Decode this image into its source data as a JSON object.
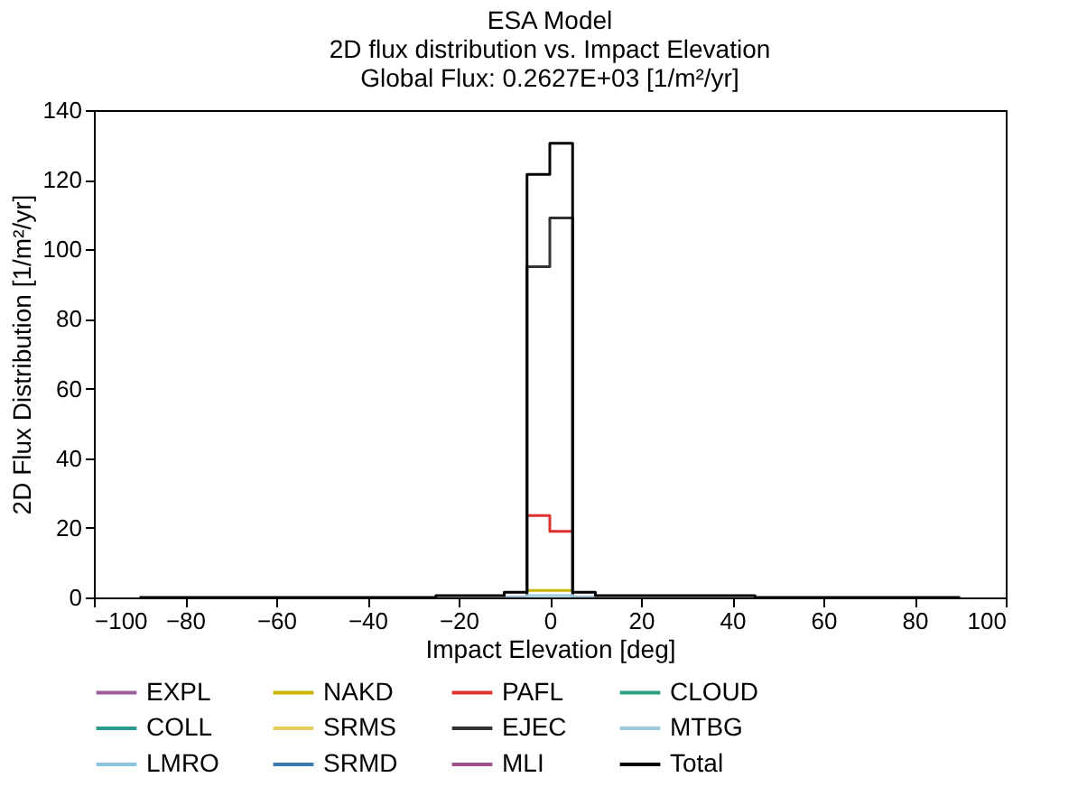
{
  "chart_data": {
    "type": "step",
    "title": "ESA Model",
    "subtitle": "2D flux distribution vs. Impact Elevation\nGlobal Flux: 0.2627E+03 [1/m²/yr]",
    "xlabel": "Impact Elevation [deg]",
    "ylabel": "2D Flux Distribution [1/m²/yr]",
    "xlim": [
      -100,
      100
    ],
    "xticks": [
      -100,
      -80,
      -60,
      -40,
      -20,
      0,
      20,
      40,
      60,
      80,
      100
    ],
    "ylim": [
      0,
      140
    ],
    "yticks": [
      0,
      20,
      40,
      60,
      80,
      100,
      120,
      140
    ],
    "grid": false,
    "legend": "bottom",
    "line_style": "solid",
    "series": [
      {
        "name": "EXPL",
        "color": "#9b5fa0"
      },
      {
        "name": "NAKD",
        "color": "#c8b400",
        "x": [
          -5,
          0,
          5
        ],
        "values": [
          2,
          2,
          2
        ]
      },
      {
        "name": "PAFL",
        "color": "#e03030",
        "x": [
          -5,
          0,
          5
        ],
        "values": [
          23.5,
          19,
          19
        ]
      },
      {
        "name": "CLOUD",
        "color": "#2aa080"
      },
      {
        "name": "COLL",
        "color": "#2a9a8a"
      },
      {
        "name": "SRMS",
        "color": "#e8d060"
      },
      {
        "name": "EJEC",
        "color": "#333333",
        "x": [
          -10,
          -5,
          0,
          5,
          10
        ],
        "values": [
          0,
          95,
          109,
          0,
          0
        ]
      },
      {
        "name": "MTBG",
        "color": "#a0c8e0",
        "x": [
          -10,
          -5,
          0,
          5,
          10
        ],
        "values": [
          0,
          0.5,
          0.5,
          0,
          0
        ]
      },
      {
        "name": "LMRO",
        "color": "#8cc4e0"
      },
      {
        "name": "SRMD",
        "color": "#3a7ab0"
      },
      {
        "name": "MLI",
        "color": "#a05090"
      },
      {
        "name": "Total",
        "color": "#000000",
        "x": [
          -90,
          -25,
          -10,
          -5,
          0,
          5,
          10,
          45,
          90
        ],
        "values": [
          0,
          0.5,
          1.5,
          121.5,
          130.5,
          1.5,
          0.5,
          0,
          0
        ]
      }
    ]
  }
}
